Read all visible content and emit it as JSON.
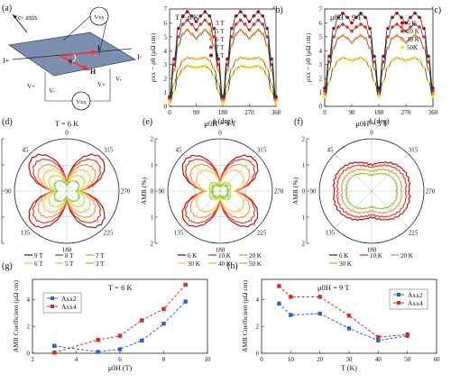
{
  "figure": {
    "panel_letters": [
      "(a)",
      "(b)",
      "(c)",
      "(d)",
      "(e)",
      "(f)",
      "(g)",
      "(h)"
    ]
  },
  "schematic": {
    "c_axis_label": "c- axis",
    "current_plus": "I+",
    "current_minus": "I-",
    "vxy_label": "Vxy",
    "vxx_label": "Vxx",
    "v_plus_left": "V+",
    "v_minus_left": "V-",
    "v_plus_right": "V+",
    "v_minus_right": "V-",
    "phi_symbol": "ϕ",
    "current_symbol": "I",
    "field_symbol": "H",
    "colors": {
      "plane": "#7d8fb0",
      "plane_edge": "#3c4a66",
      "current_arrow": "#ff2d2d",
      "field_arrow": "#ff2d2d"
    }
  },
  "chart_data": [
    {
      "id": "b",
      "type": "line",
      "title": "T = 6 K",
      "xlabel": "ϕ (deg)",
      "ylabel": "ρxx − ρ0 (μΩ cm)",
      "xlim": [
        0,
        360
      ],
      "ylim": [
        0,
        7
      ],
      "xticks": [
        0,
        90,
        180,
        270,
        360
      ],
      "yticks": [
        0,
        1,
        2,
        3,
        4,
        5,
        6,
        7
      ],
      "legend_position": "top-left",
      "x": [
        0,
        15,
        30,
        45,
        60,
        75,
        90,
        105,
        120,
        135,
        150,
        165,
        180,
        195,
        210,
        225,
        240,
        255,
        270,
        285,
        300,
        315,
        330,
        345,
        360
      ],
      "series": [
        {
          "name": "3 T",
          "color": "#e8e83a",
          "values": [
            0.2,
            1.1,
            2.2,
            2.7,
            2.9,
            2.85,
            2.8,
            2.85,
            2.9,
            2.7,
            2.2,
            1.1,
            0.2,
            1.1,
            2.2,
            2.7,
            2.9,
            2.85,
            2.8,
            2.85,
            2.9,
            2.7,
            2.2,
            1.1,
            0.2
          ]
        },
        {
          "name": "5 T",
          "color": "#f4c95a",
          "values": [
            0.4,
            1.6,
            2.7,
            3.3,
            3.5,
            3.45,
            3.4,
            3.45,
            3.5,
            3.3,
            2.7,
            1.6,
            0.4,
            1.6,
            2.7,
            3.3,
            3.5,
            3.45,
            3.4,
            3.45,
            3.5,
            3.3,
            2.7,
            1.6,
            0.4
          ]
        },
        {
          "name": "6 T",
          "color": "#f29a4a",
          "values": [
            0.5,
            2.6,
            4.4,
            5.2,
            5.5,
            5.2,
            4.9,
            5.2,
            5.5,
            5.2,
            4.4,
            2.6,
            0.5,
            2.6,
            4.4,
            5.2,
            5.5,
            5.2,
            4.9,
            5.2,
            5.5,
            5.2,
            4.4,
            2.6,
            0.5
          ]
        },
        {
          "name": "7 T",
          "color": "#d9352c",
          "values": [
            0.6,
            3.0,
            5.0,
            5.9,
            6.2,
            5.9,
            5.5,
            5.9,
            6.2,
            5.9,
            5.0,
            3.0,
            0.6,
            3.0,
            5.0,
            5.9,
            6.2,
            5.9,
            5.5,
            5.9,
            6.2,
            5.9,
            5.0,
            3.0,
            0.6
          ]
        },
        {
          "name": "9 T",
          "color": "#8b1a1a",
          "values": [
            0.7,
            3.4,
            5.6,
            6.5,
            6.8,
            6.5,
            6.1,
            6.5,
            6.8,
            6.5,
            5.6,
            3.4,
            0.7,
            3.4,
            5.6,
            6.5,
            6.8,
            6.5,
            6.1,
            6.5,
            6.8,
            6.5,
            5.6,
            3.4,
            0.7
          ]
        }
      ]
    },
    {
      "id": "c",
      "type": "line",
      "title": "μ0H = 9 T",
      "xlabel": "ϕ (deg)",
      "ylabel": "ρxx − ρ0 (μΩ cm)",
      "xlim": [
        0,
        360
      ],
      "ylim": [
        0,
        7
      ],
      "xticks": [
        0,
        90,
        180,
        270,
        360
      ],
      "yticks": [
        0,
        1,
        2,
        3,
        4,
        5,
        6,
        7
      ],
      "legend_position": "top-left",
      "x": [
        0,
        15,
        30,
        45,
        60,
        75,
        90,
        105,
        120,
        135,
        150,
        165,
        180,
        195,
        210,
        225,
        240,
        255,
        270,
        285,
        300,
        315,
        330,
        345,
        360
      ],
      "series": [
        {
          "name": "6 K",
          "color": "#8b1a1a",
          "values": [
            1.3,
            3.6,
            5.6,
            6.4,
            6.7,
            6.4,
            6.0,
            6.4,
            6.7,
            6.4,
            5.6,
            3.6,
            1.3,
            3.6,
            5.6,
            6.4,
            6.7,
            6.4,
            6.0,
            6.4,
            6.7,
            6.4,
            5.6,
            3.6,
            1.3
          ]
        },
        {
          "name": "20 K",
          "color": "#d9352c",
          "values": [
            1.1,
            3.2,
            5.0,
            5.7,
            5.9,
            5.7,
            5.4,
            5.7,
            5.9,
            5.7,
            5.0,
            3.2,
            1.1,
            3.2,
            5.0,
            5.7,
            5.9,
            5.7,
            5.4,
            5.7,
            5.9,
            5.7,
            5.0,
            3.2,
            1.1
          ]
        },
        {
          "name": "30 K",
          "color": "#f29a4a",
          "values": [
            0.9,
            2.7,
            4.2,
            4.9,
            5.1,
            4.9,
            4.6,
            4.9,
            5.1,
            4.9,
            4.2,
            2.7,
            0.9,
            2.7,
            4.2,
            4.9,
            5.1,
            4.9,
            4.6,
            4.9,
            5.1,
            4.9,
            4.2,
            2.7,
            0.9
          ]
        },
        {
          "name": "50K",
          "color": "#e8e83a",
          "values": [
            0.7,
            1.8,
            2.8,
            3.3,
            3.5,
            3.4,
            3.3,
            3.4,
            3.5,
            3.3,
            2.8,
            1.8,
            0.7,
            1.8,
            2.8,
            3.3,
            3.5,
            3.4,
            3.3,
            3.4,
            3.5,
            3.3,
            2.8,
            1.8,
            0.7
          ]
        }
      ]
    },
    {
      "id": "d",
      "type": "polar",
      "title": "T = 6 K",
      "rlabel": "AMR (%)",
      "rlim": [
        0,
        2
      ],
      "rticks": [
        0,
        1,
        2
      ],
      "rtick_labels_left": [
        "2",
        "1",
        "0",
        "1",
        "2"
      ],
      "angle_labels": [
        {
          "deg": 0,
          "text": "0"
        },
        {
          "deg": 45,
          "text": "315"
        },
        {
          "deg": 90,
          "text": "270"
        },
        {
          "deg": 135,
          "text": "225"
        },
        {
          "deg": 180,
          "text": "180"
        },
        {
          "deg": 225,
          "text": "135"
        },
        {
          "deg": 270,
          "text": "90"
        },
        {
          "deg": 315,
          "text": "45"
        }
      ],
      "legend_position": "bottom",
      "series": [
        {
          "name": "9 T",
          "color": "#b3171c",
          "amp": 1.9,
          "base": 0.25,
          "lobe": 0.9
        },
        {
          "name": "8 T",
          "color": "#e0412b",
          "amp": 1.7,
          "base": 0.25,
          "lobe": 0.85
        },
        {
          "name": "7 T",
          "color": "#f29a4a",
          "amp": 1.45,
          "base": 0.22,
          "lobe": 0.8
        },
        {
          "name": "6 T",
          "color": "#f4c95a",
          "amp": 1.2,
          "base": 0.2,
          "lobe": 0.75
        },
        {
          "name": "5 T",
          "color": "#c9dc4a",
          "amp": 0.9,
          "base": 0.2,
          "lobe": 0.7
        },
        {
          "name": "3 T",
          "color": "#8fcf4a",
          "amp": 0.6,
          "base": 0.2,
          "lobe": 0.6
        }
      ]
    },
    {
      "id": "e",
      "type": "polar",
      "title": "μ0H = 9 T",
      "rlabel": "AMR (%)",
      "rlim": [
        0,
        2
      ],
      "rticks": [
        0,
        1,
        2
      ],
      "rtick_labels_left": [
        "2",
        "1",
        "0",
        "1",
        "2"
      ],
      "angle_labels": [
        {
          "deg": 0,
          "text": "0"
        },
        {
          "deg": 45,
          "text": "315"
        },
        {
          "deg": 90,
          "text": "270"
        },
        {
          "deg": 135,
          "text": "225"
        },
        {
          "deg": 180,
          "text": "180"
        },
        {
          "deg": 225,
          "text": "135"
        },
        {
          "deg": 270,
          "text": "90"
        },
        {
          "deg": 315,
          "text": "45"
        }
      ],
      "legend_position": "bottom",
      "series": [
        {
          "name": "6 K",
          "color": "#b3171c",
          "amp": 1.9,
          "base": 0.3,
          "lobe": 0.85
        },
        {
          "name": "10 K",
          "color": "#e0412b",
          "amp": 1.75,
          "base": 0.3,
          "lobe": 0.8
        },
        {
          "name": "20 K",
          "color": "#f29a4a",
          "amp": 1.5,
          "base": 0.28,
          "lobe": 0.75
        },
        {
          "name": "30 K",
          "color": "#f4c95a",
          "amp": 1.2,
          "base": 0.25,
          "lobe": 0.7
        },
        {
          "name": "40 K",
          "color": "#c9dc4a",
          "amp": 0.5,
          "base": 0.2,
          "lobe": 0.5
        },
        {
          "name": "50 K",
          "color": "#8fcf4a",
          "amp": 0.35,
          "base": 0.18,
          "lobe": 0.45
        }
      ]
    },
    {
      "id": "f",
      "type": "polar",
      "title": "μ0H = 5 T",
      "rlabel": "AMR (%)",
      "rlim": [
        0,
        2
      ],
      "rticks": [
        0,
        1,
        2
      ],
      "rtick_labels_left": [
        "2",
        "1",
        "0",
        "1",
        "2"
      ],
      "angle_labels": [
        {
          "deg": 0,
          "text": "0"
        },
        {
          "deg": 45,
          "text": "315"
        },
        {
          "deg": 90,
          "text": "270"
        },
        {
          "deg": 135,
          "text": "225"
        },
        {
          "deg": 180,
          "text": "180"
        },
        {
          "deg": 225,
          "text": "135"
        },
        {
          "deg": 270,
          "text": "90"
        },
        {
          "deg": 315,
          "text": "45"
        }
      ],
      "legend_position": "bottom",
      "series": [
        {
          "name": "6 K",
          "color": "#b3171c",
          "amp": 1.6,
          "base": 1.0,
          "lobe": 0.3
        },
        {
          "name": "10 K",
          "color": "#e0412b",
          "amp": 1.45,
          "base": 0.9,
          "lobe": 0.28
        },
        {
          "name": "20 K",
          "color": "#f29a4a",
          "amp": 1.25,
          "base": 0.75,
          "lobe": 0.25
        },
        {
          "name": "30 K",
          "color": "#8fcf4a",
          "amp": 1.05,
          "base": 0.6,
          "lobe": 0.22
        }
      ]
    },
    {
      "id": "g",
      "type": "scatter",
      "title": "T = 6 K",
      "xlabel": "μ0H (T)",
      "ylabel": "AMR Coefficient (μΩ cm)",
      "xlim": [
        2,
        10
      ],
      "ylim": [
        0,
        5.5
      ],
      "xticks": [
        2,
        4,
        6,
        8,
        10
      ],
      "yticks": [
        0,
        2,
        4
      ],
      "legend_position": "top-left",
      "series": [
        {
          "name": "Axx2",
          "color": "#2f5fd0",
          "marker": "square",
          "x": [
            3,
            5,
            6,
            7,
            8,
            9
          ],
          "values": [
            0.55,
            0.1,
            0.3,
            0.95,
            2.2,
            3.85
          ]
        },
        {
          "name": "Axx4",
          "color": "#d82a2a",
          "marker": "square",
          "x": [
            3,
            5,
            6,
            7,
            8,
            9
          ],
          "values": [
            0.05,
            1.0,
            1.3,
            2.45,
            3.3,
            5.1
          ]
        }
      ]
    },
    {
      "id": "h",
      "type": "scatter",
      "title": "μ0H = 9 T",
      "xlabel": "T (K)",
      "ylabel": "AMR Coefficient (μΩ cm)",
      "xlim": [
        0,
        60
      ],
      "ylim": [
        0,
        5.5
      ],
      "xticks": [
        0,
        10,
        20,
        30,
        40,
        50,
        60
      ],
      "yticks": [
        0,
        2,
        4
      ],
      "legend_position": "top-right",
      "series": [
        {
          "name": "Axx2",
          "color": "#2f5fd0",
          "marker": "square",
          "x": [
            6,
            10,
            20,
            30,
            40,
            50
          ],
          "values": [
            3.7,
            2.85,
            2.95,
            1.85,
            0.95,
            1.3
          ]
        },
        {
          "name": "Axx4",
          "color": "#d82a2a",
          "marker": "square",
          "x": [
            6,
            10,
            20,
            30,
            40,
            50
          ],
          "values": [
            5.0,
            4.2,
            4.2,
            2.8,
            1.2,
            1.4
          ]
        }
      ]
    }
  ]
}
